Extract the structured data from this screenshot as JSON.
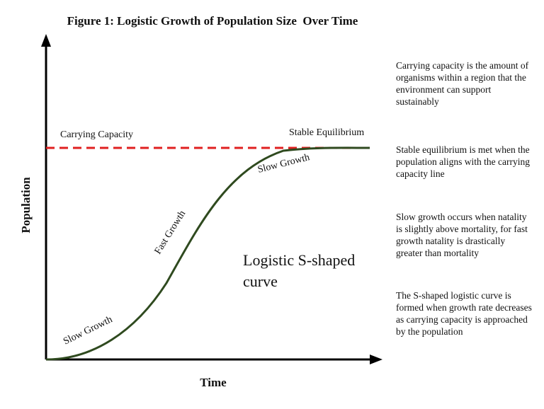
{
  "title": "Figure 1: Logistic Growth of Population Size  Over Time",
  "axes": {
    "y_label": "Population",
    "x_label": "Time"
  },
  "annotations": {
    "carrying_capacity": "Carrying Capacity",
    "stable_equilibrium": "Stable Equilibrium",
    "slow_growth_top": "Slow Growth",
    "fast_growth": "Fast Growth",
    "slow_growth_bottom": "Slow Growth",
    "curve_line1": "Logistic S-shaped",
    "curve_line2": "curve"
  },
  "notes": [
    "Carrying capacity is the amount of organisms within a region that the environment can support sustainably",
    "Stable equilibrium is met when the population aligns with the carrying capacity line",
    "Slow growth occurs when natality is slightly above mortality, for fast growth natality is drastically greater than mortality",
    "The S-shaped logistic curve is formed when growth rate decreases as carrying capacity is approached by the population"
  ]
}
